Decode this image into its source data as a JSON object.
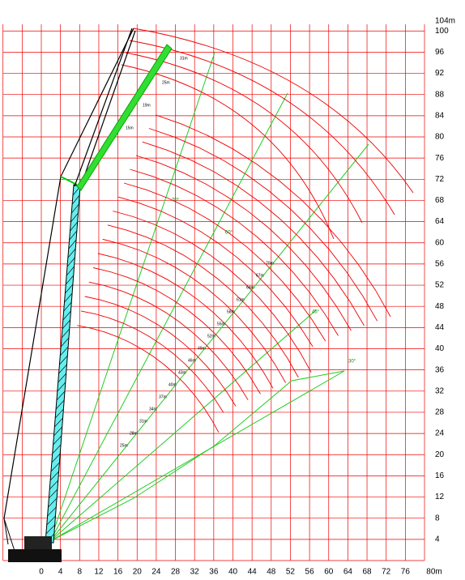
{
  "x_axis": {
    "labels": [
      "0",
      "4",
      "8",
      "12",
      "16",
      "20",
      "24",
      "28",
      "32",
      "36",
      "40",
      "44",
      "48",
      "52",
      "56",
      "60",
      "64",
      "68",
      "72",
      "76",
      "80m"
    ]
  },
  "y_axis": {
    "labels": [
      "4",
      "8",
      "12",
      "16",
      "20",
      "24",
      "28",
      "32",
      "36",
      "40",
      "44",
      "48",
      "52",
      "56",
      "60",
      "64",
      "68",
      "72",
      "76",
      "80",
      "84",
      "88",
      "92",
      "96",
      "100",
      "104m"
    ]
  },
  "angle_labels": [
    "70°",
    "60°",
    "45°",
    "30°"
  ],
  "boom_labels": [
    "25m",
    "28m",
    "31m",
    "34m",
    "37m",
    "40m",
    "43m",
    "46m",
    "49m",
    "52m",
    "55m",
    "58m",
    "61m",
    "64m",
    "67m",
    "70m"
  ],
  "jib_labels": [
    "31m",
    "25m",
    "19m",
    "15m"
  ]
}
